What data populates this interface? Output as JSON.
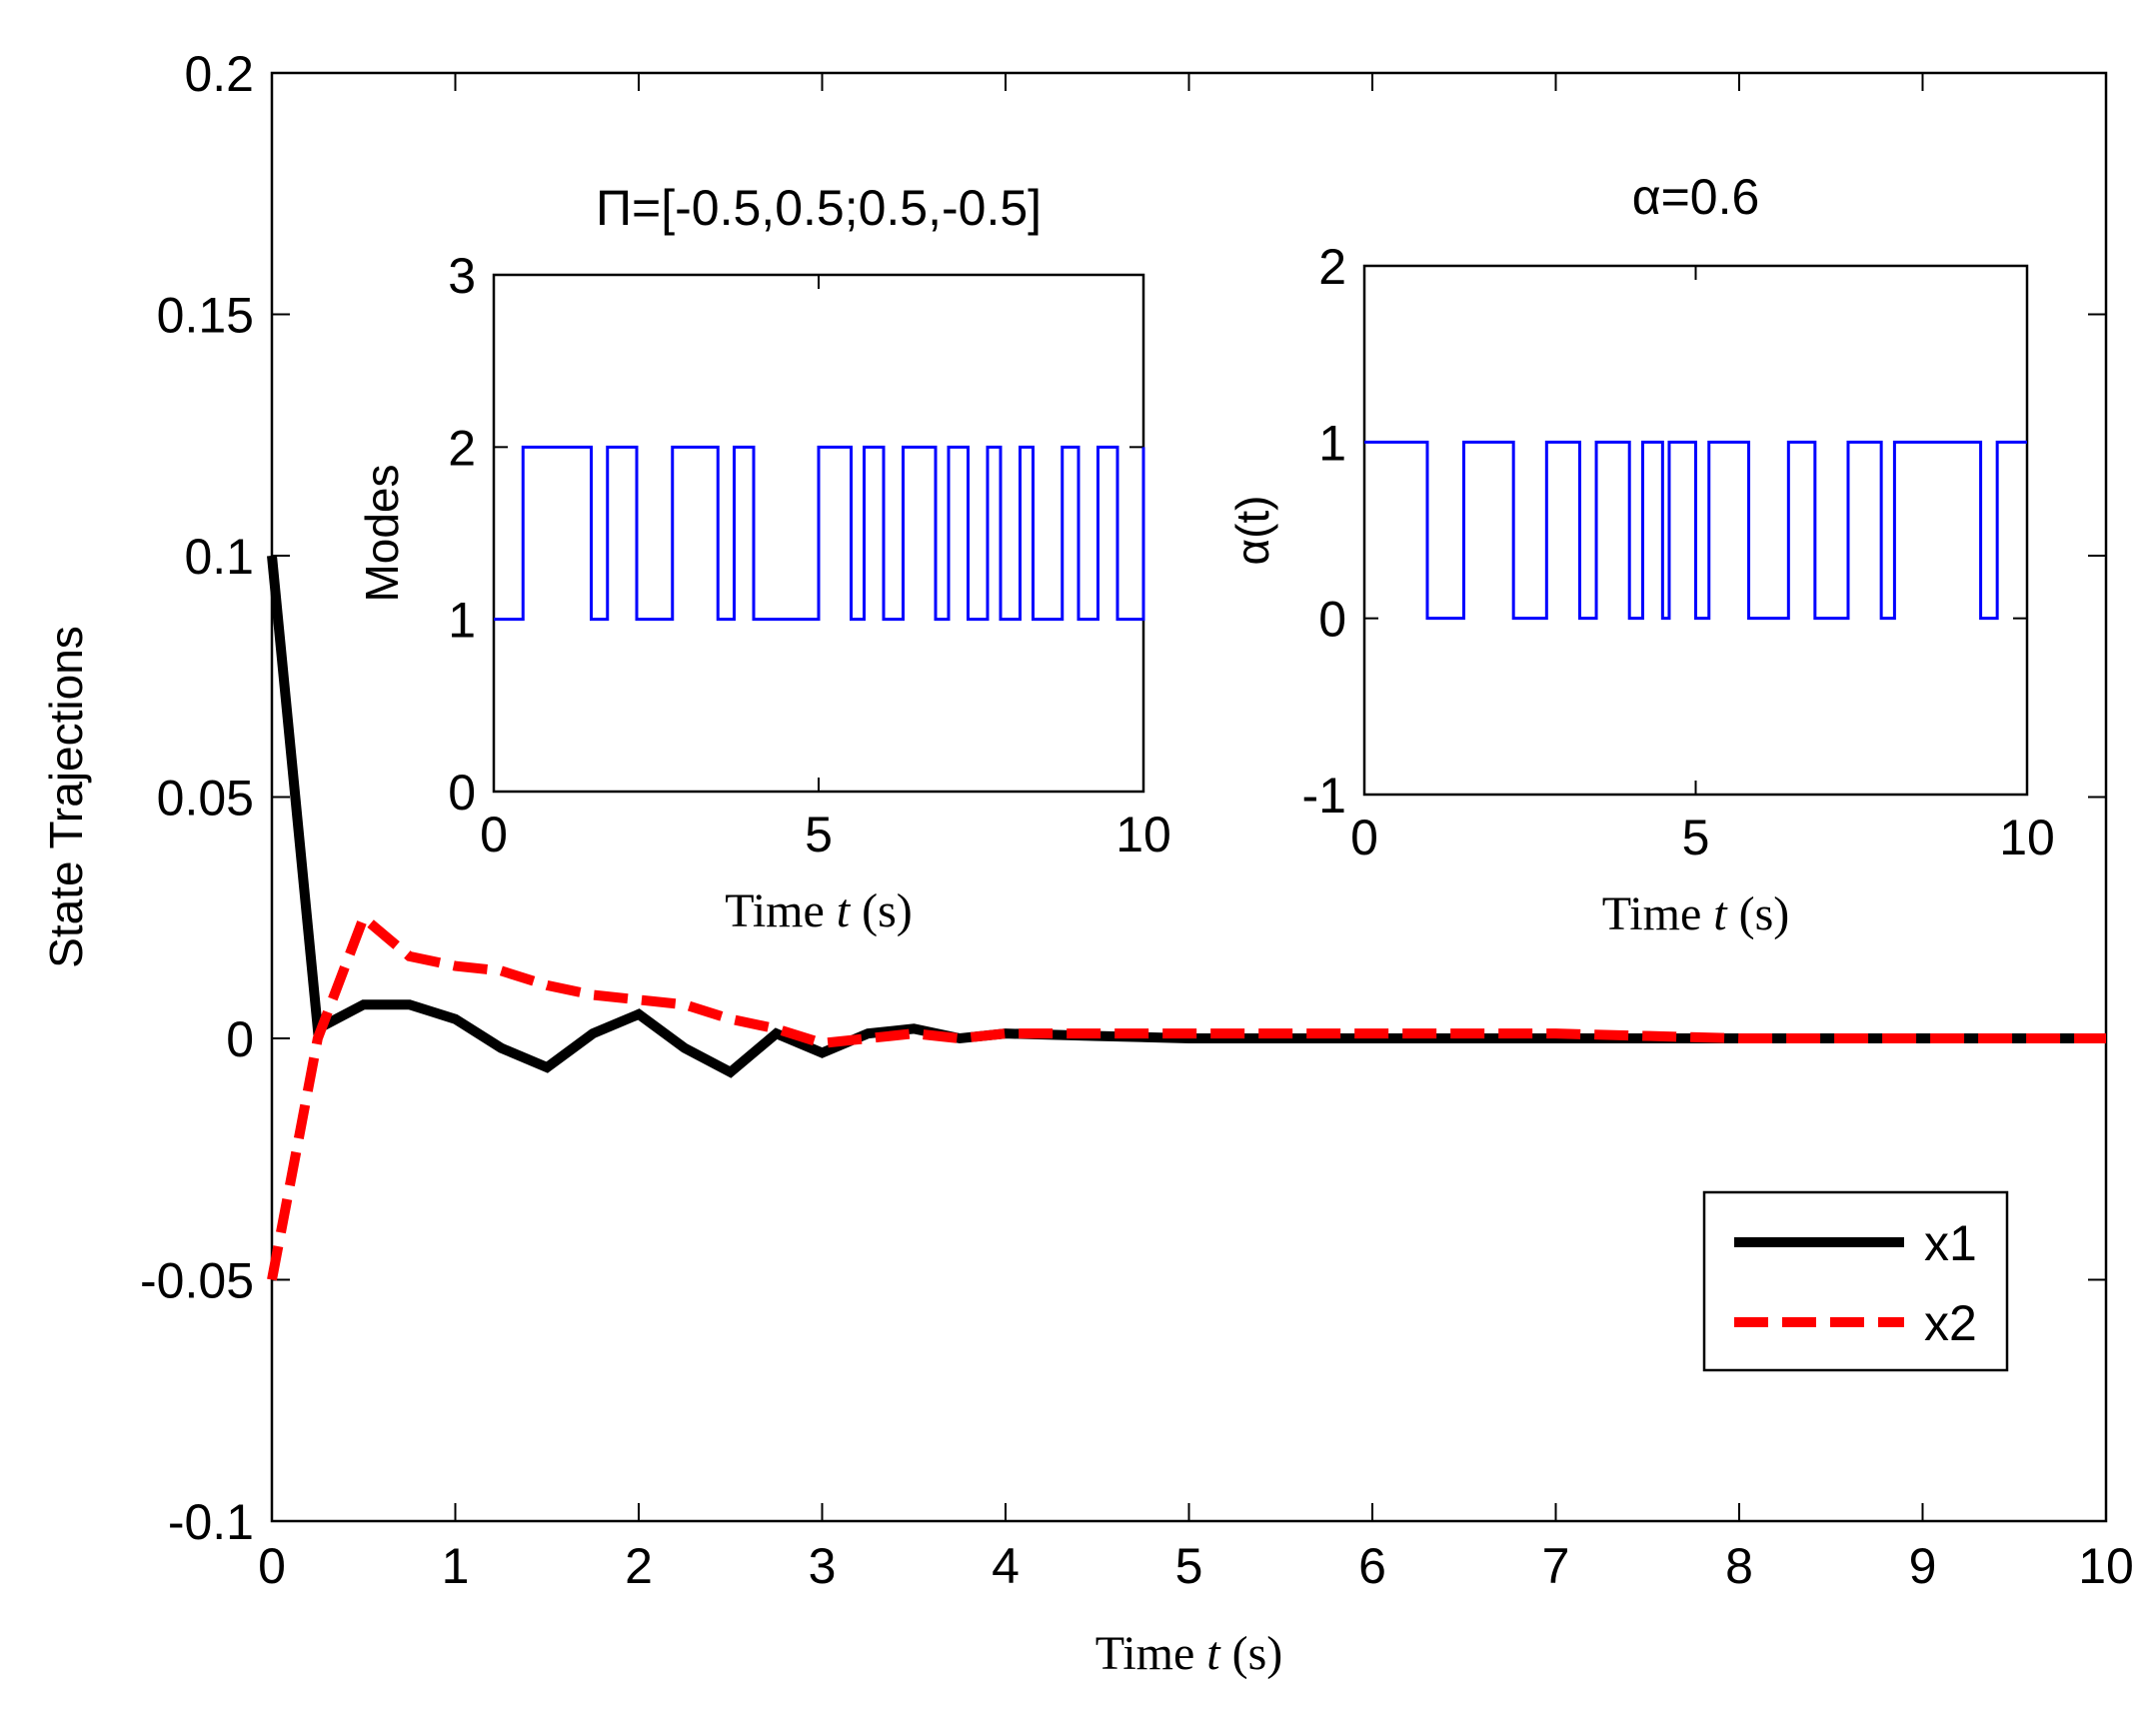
{
  "chart_data": [
    {
      "id": "main",
      "type": "line",
      "title": "",
      "xlabel_prefix": "Time ",
      "xlabel_var": "t",
      "xlabel_unit": "(s)",
      "ylabel": "State Trajections",
      "xlim": [
        0,
        10
      ],
      "ylim": [
        -0.1,
        0.2
      ],
      "xticks": [
        0,
        1,
        2,
        3,
        4,
        5,
        6,
        7,
        8,
        9,
        10
      ],
      "yticks": [
        -0.1,
        -0.05,
        0,
        0.05,
        0.1,
        0.15,
        0.2
      ],
      "xtick_labels": [
        "0",
        "1",
        "2",
        "3",
        "4",
        "5",
        "6",
        "7",
        "8",
        "9",
        "10"
      ],
      "ytick_labels": [
        "-0.1",
        "-0.05",
        "0",
        "0.05",
        "0.1",
        "0.15",
        "0.2"
      ],
      "legend_position": "lower-right",
      "series": [
        {
          "name": "x1",
          "color": "#000000",
          "style": "solid",
          "x": [
            0,
            0.25,
            0.5,
            0.75,
            1.0,
            1.25,
            1.5,
            1.75,
            2.0,
            2.25,
            2.5,
            2.75,
            3.0,
            3.25,
            3.5,
            3.75,
            4.0,
            4.5,
            5,
            6,
            7,
            8,
            9,
            10
          ],
          "y": [
            0.1,
            0.002,
            0.007,
            0.007,
            0.004,
            -0.002,
            -0.006,
            0.001,
            0.005,
            -0.002,
            -0.007,
            0.001,
            -0.003,
            0.001,
            0.002,
            0.0,
            0.001,
            0.0005,
            0.0,
            0.0,
            0.0,
            0.0,
            0.0,
            0.0
          ]
        },
        {
          "name": "x2",
          "color": "#ff0000",
          "style": "dashed",
          "x": [
            0,
            0.25,
            0.5,
            0.75,
            1.0,
            1.25,
            1.5,
            1.75,
            2.0,
            2.25,
            2.5,
            2.75,
            3.0,
            3.25,
            3.5,
            3.75,
            4.0,
            4.5,
            5,
            6,
            7,
            8,
            9,
            10
          ],
          "y": [
            -0.05,
            0.0,
            0.025,
            0.017,
            0.015,
            0.014,
            0.011,
            0.009,
            0.008,
            0.007,
            0.004,
            0.002,
            -0.001,
            0.0,
            0.001,
            0.0,
            0.001,
            0.001,
            0.001,
            0.001,
            0.001,
            0.0,
            0.0,
            0.0
          ]
        }
      ]
    },
    {
      "id": "inset_modes",
      "type": "line",
      "title": "Π=[-0.5,0.5;0.5,-0.5]",
      "xlabel_prefix": "Time ",
      "xlabel_var": "t",
      "xlabel_unit": "(s)",
      "ylabel": "Modes",
      "xlim": [
        0,
        10
      ],
      "ylim": [
        0,
        3
      ],
      "xticks": [
        0,
        5,
        10
      ],
      "yticks": [
        0,
        1,
        2,
        3
      ],
      "xtick_labels": [
        "0",
        "5",
        "10"
      ],
      "ytick_labels": [
        "0",
        "1",
        "2",
        "3"
      ],
      "series": [
        {
          "name": "modes",
          "color": "#0000ff",
          "style": "step",
          "x": [
            0,
            0.45,
            1.5,
            1.75,
            2.2,
            2.75,
            3.45,
            3.7,
            4.0,
            5.0,
            5.5,
            5.7,
            6.0,
            6.3,
            6.8,
            7.0,
            7.3,
            7.6,
            7.8,
            8.1,
            8.3,
            8.75,
            9.0,
            9.3,
            9.6,
            10
          ],
          "y": [
            1,
            2,
            1,
            2,
            1,
            2,
            1,
            2,
            1,
            2,
            1,
            2,
            1,
            2,
            1,
            2,
            1,
            2,
            1,
            2,
            1,
            2,
            1,
            2,
            1,
            2
          ]
        }
      ]
    },
    {
      "id": "inset_alpha",
      "type": "line",
      "title": "α=0.6",
      "xlabel_prefix": "Time ",
      "xlabel_var": "t",
      "xlabel_unit": "(s)",
      "ylabel": "α(t)",
      "xlim": [
        0,
        10
      ],
      "ylim": [
        -1,
        2
      ],
      "xticks": [
        0,
        5,
        10
      ],
      "yticks": [
        -1,
        0,
        1,
        2
      ],
      "xtick_labels": [
        "0",
        "5",
        "10"
      ],
      "ytick_labels": [
        "-1",
        "0",
        "1",
        "2"
      ],
      "series": [
        {
          "name": "alpha",
          "color": "#0000ff",
          "style": "step",
          "x": [
            0,
            0.95,
            1.5,
            2.25,
            2.75,
            3.25,
            3.5,
            4.0,
            4.2,
            4.5,
            4.6,
            5.0,
            5.2,
            5.8,
            6.4,
            6.8,
            7.3,
            7.8,
            8.0,
            9.3,
            9.55,
            10
          ],
          "y": [
            1,
            0,
            1,
            0,
            1,
            0,
            1,
            0,
            1,
            0,
            1,
            0,
            1,
            0,
            1,
            0,
            1,
            0,
            1,
            0,
            1,
            1
          ]
        }
      ]
    }
  ]
}
